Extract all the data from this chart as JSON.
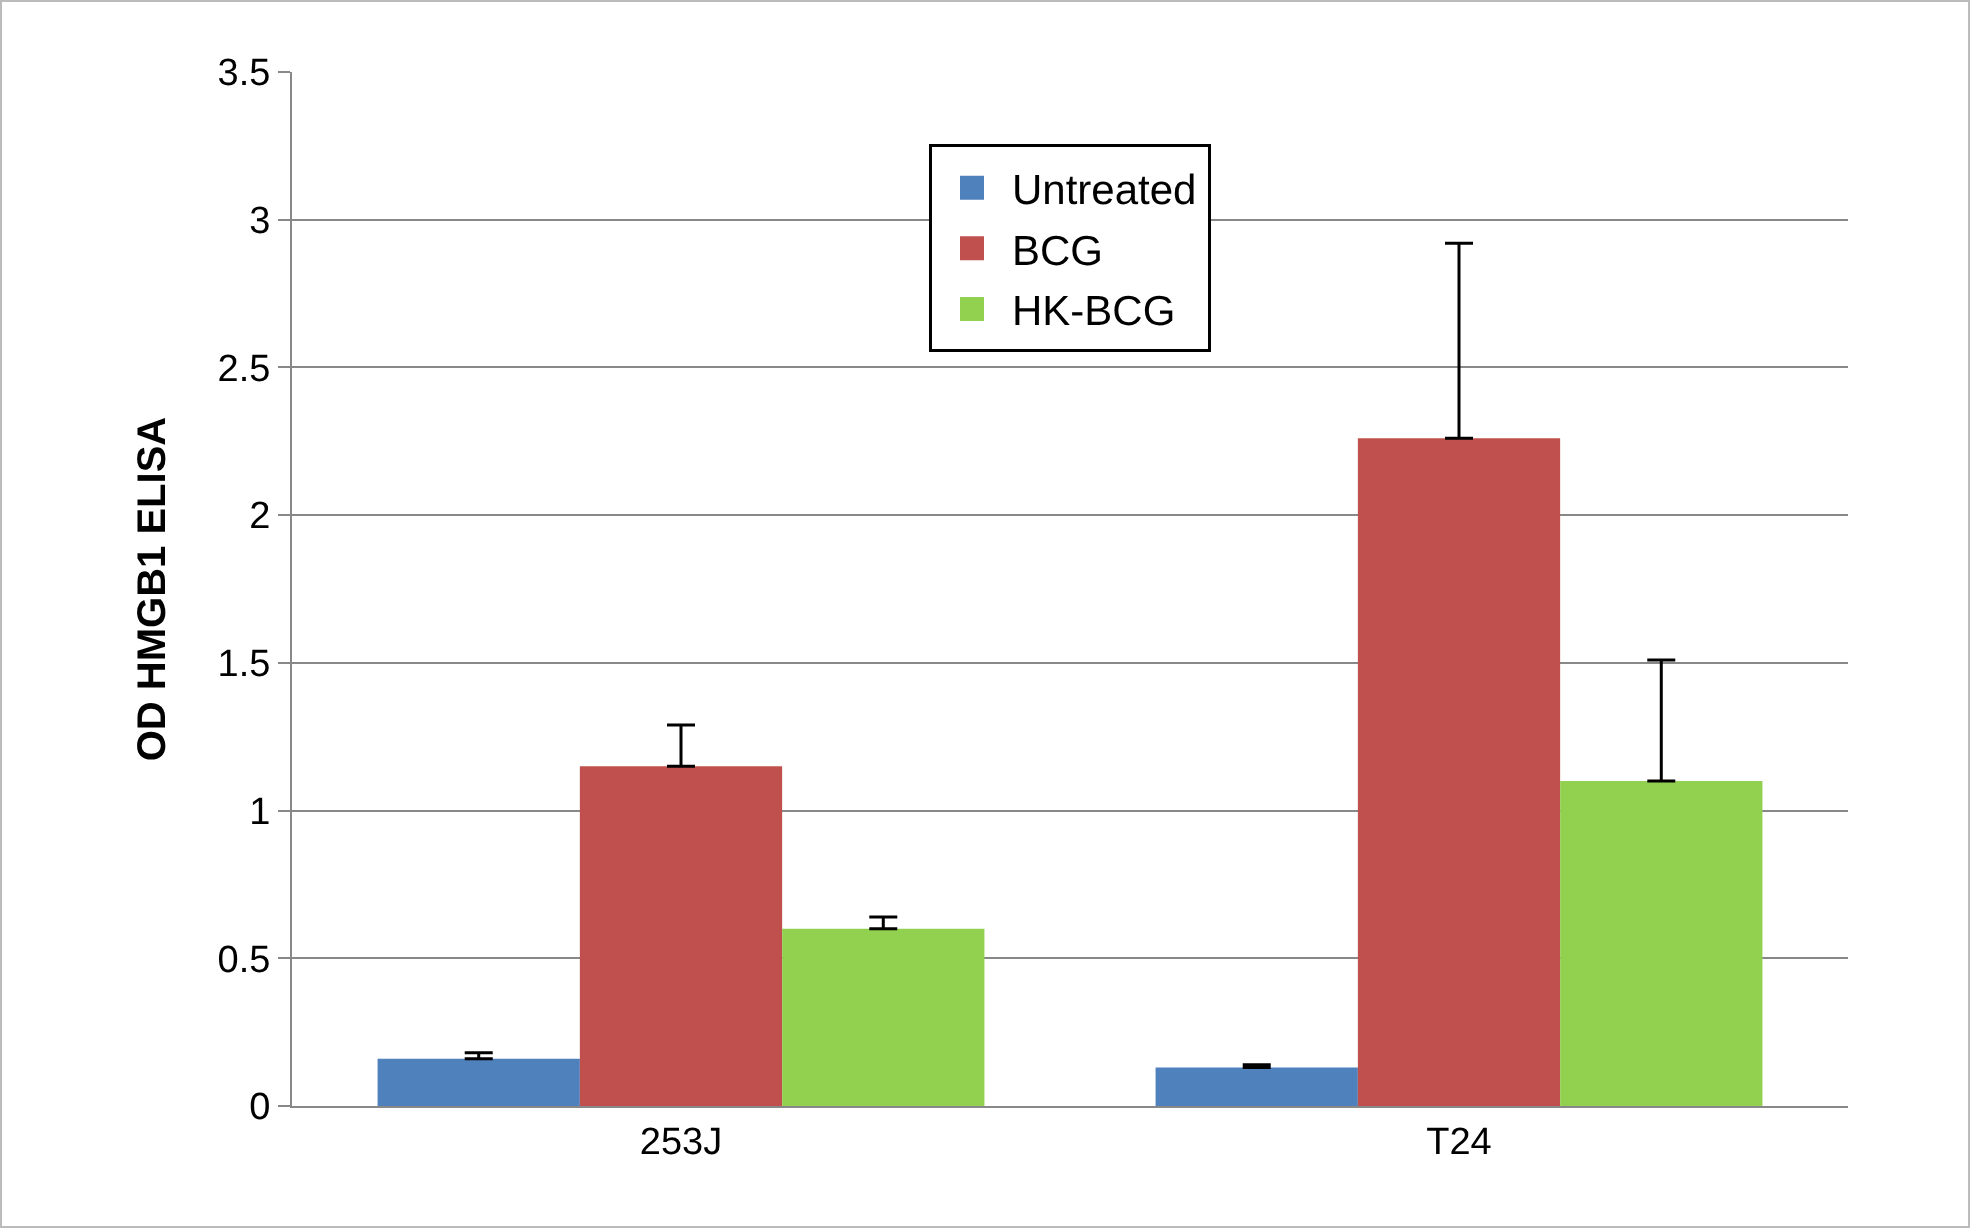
{
  "chart_data": {
    "type": "bar",
    "ylabel": "OD HMGB1 ELISA",
    "categories": [
      "253J",
      "T24"
    ],
    "series": [
      {
        "name": "Untreated",
        "color": "#4f81bd",
        "values": [
          0.16,
          0.13
        ],
        "errors": [
          [
            0.16,
            0.18
          ],
          [
            0.13,
            0.14
          ]
        ]
      },
      {
        "name": "BCG",
        "color": "#c0504d",
        "values": [
          1.15,
          2.26
        ],
        "errors": [
          [
            1.15,
            1.29
          ],
          [
            2.26,
            2.92
          ]
        ]
      },
      {
        "name": "HK-BCG",
        "color": "#92d050",
        "values": [
          0.6,
          1.1
        ],
        "errors": [
          [
            0.6,
            0.64
          ],
          [
            1.1,
            1.51
          ]
        ]
      }
    ],
    "ylim": [
      0,
      3.5
    ],
    "yticks": [
      0,
      0.5,
      1,
      1.5,
      2,
      2.5,
      3,
      3.5
    ],
    "grid": "y",
    "legend": "top"
  }
}
